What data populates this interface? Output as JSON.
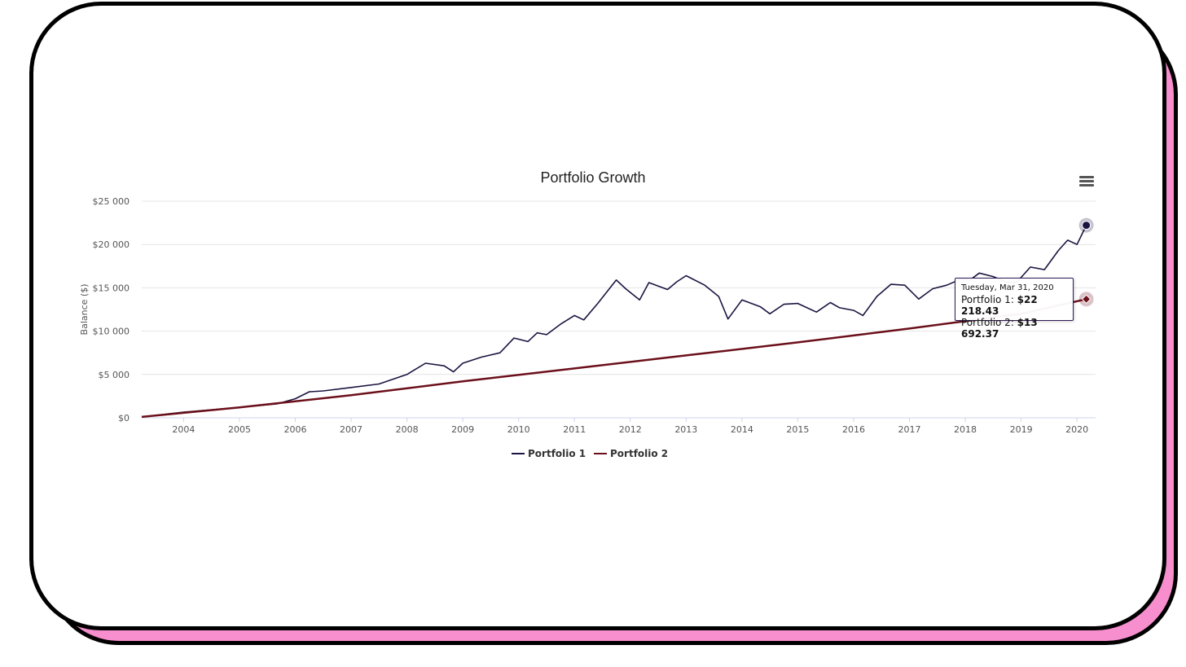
{
  "colors": {
    "series1": "#1c1440",
    "series2": "#6b0f1a",
    "card_accent": "#f78fce",
    "gridline": "#e4e4e4"
  },
  "menu": {
    "icon": "hamburger-menu-icon"
  },
  "tooltip": {
    "date": "Tuesday, Mar 31, 2020",
    "rows": [
      {
        "label": "Portfolio 1: ",
        "value": "$22 218.43"
      },
      {
        "label": "Portfolio 2: ",
        "value": "$13 692.37"
      }
    ]
  },
  "chart_data": {
    "type": "line",
    "title": "Portfolio Growth",
    "ylabel": "Balance ($)",
    "xlabel": "",
    "ylim": [
      0,
      25000
    ],
    "yticks": [
      0,
      5000,
      10000,
      15000,
      20000,
      25000
    ],
    "ytick_labels": [
      "$0",
      "$5 000",
      "$10 000",
      "$15 000",
      "$20 000",
      "$25 000"
    ],
    "xlim": [
      "2003-04",
      "2020-05"
    ],
    "xticks": [
      "2004",
      "2005",
      "2006",
      "2007",
      "2008",
      "2009",
      "2010",
      "2011",
      "2012",
      "2013",
      "2014",
      "2015",
      "2016",
      "2017",
      "2018",
      "2019",
      "2020"
    ],
    "grid": true,
    "legend": "bottom-center",
    "series": [
      {
        "name": "Portfolio 1",
        "points": [
          [
            "2003-04",
            100
          ],
          [
            "2004-01",
            650
          ],
          [
            "2005-01",
            1200
          ],
          [
            "2005-09",
            1600
          ],
          [
            "2006-01",
            2200
          ],
          [
            "2006-04",
            3000
          ],
          [
            "2006-07",
            3100
          ],
          [
            "2007-01",
            3500
          ],
          [
            "2007-07",
            3900
          ],
          [
            "2008-01",
            5000
          ],
          [
            "2008-05",
            6300
          ],
          [
            "2008-09",
            6000
          ],
          [
            "2008-11",
            5300
          ],
          [
            "2009-01",
            6300
          ],
          [
            "2009-05",
            7000
          ],
          [
            "2009-09",
            7500
          ],
          [
            "2009-12",
            9200
          ],
          [
            "2010-03",
            8800
          ],
          [
            "2010-05",
            9800
          ],
          [
            "2010-07",
            9600
          ],
          [
            "2010-10",
            10800
          ],
          [
            "2011-01",
            11800
          ],
          [
            "2011-03",
            11300
          ],
          [
            "2011-06",
            13200
          ],
          [
            "2011-10",
            15900
          ],
          [
            "2011-12",
            14900
          ],
          [
            "2012-03",
            13600
          ],
          [
            "2012-05",
            15600
          ],
          [
            "2012-09",
            14800
          ],
          [
            "2012-11",
            15700
          ],
          [
            "2013-01",
            16400
          ],
          [
            "2013-05",
            15300
          ],
          [
            "2013-08",
            14000
          ],
          [
            "2013-10",
            11400
          ],
          [
            "2014-01",
            13600
          ],
          [
            "2014-05",
            12800
          ],
          [
            "2014-07",
            12000
          ],
          [
            "2014-10",
            13100
          ],
          [
            "2015-01",
            13200
          ],
          [
            "2015-05",
            12200
          ],
          [
            "2015-08",
            13300
          ],
          [
            "2015-10",
            12700
          ],
          [
            "2016-01",
            12400
          ],
          [
            "2016-03",
            11800
          ],
          [
            "2016-06",
            14000
          ],
          [
            "2016-09",
            15400
          ],
          [
            "2016-12",
            15300
          ],
          [
            "2017-03",
            13700
          ],
          [
            "2017-06",
            14900
          ],
          [
            "2017-09",
            15300
          ],
          [
            "2017-12",
            16000
          ],
          [
            "2018-02",
            15900
          ],
          [
            "2018-04",
            16700
          ],
          [
            "2018-07",
            16300
          ],
          [
            "2018-10",
            15600
          ],
          [
            "2018-12",
            15600
          ],
          [
            "2019-03",
            17400
          ],
          [
            "2019-06",
            17100
          ],
          [
            "2019-09",
            19300
          ],
          [
            "2019-11",
            20500
          ],
          [
            "2020-01",
            20000
          ],
          [
            "2020-03",
            22218
          ]
        ]
      },
      {
        "name": "Portfolio 2",
        "points": [
          [
            "2003-04",
            100
          ],
          [
            "2005-01",
            1200
          ],
          [
            "2007-01",
            2600
          ],
          [
            "2009-01",
            4200
          ],
          [
            "2011-01",
            5700
          ],
          [
            "2013-01",
            7200
          ],
          [
            "2015-01",
            8700
          ],
          [
            "2017-01",
            10300
          ],
          [
            "2019-01",
            12000
          ],
          [
            "2020-03",
            13692
          ]
        ]
      }
    ]
  }
}
